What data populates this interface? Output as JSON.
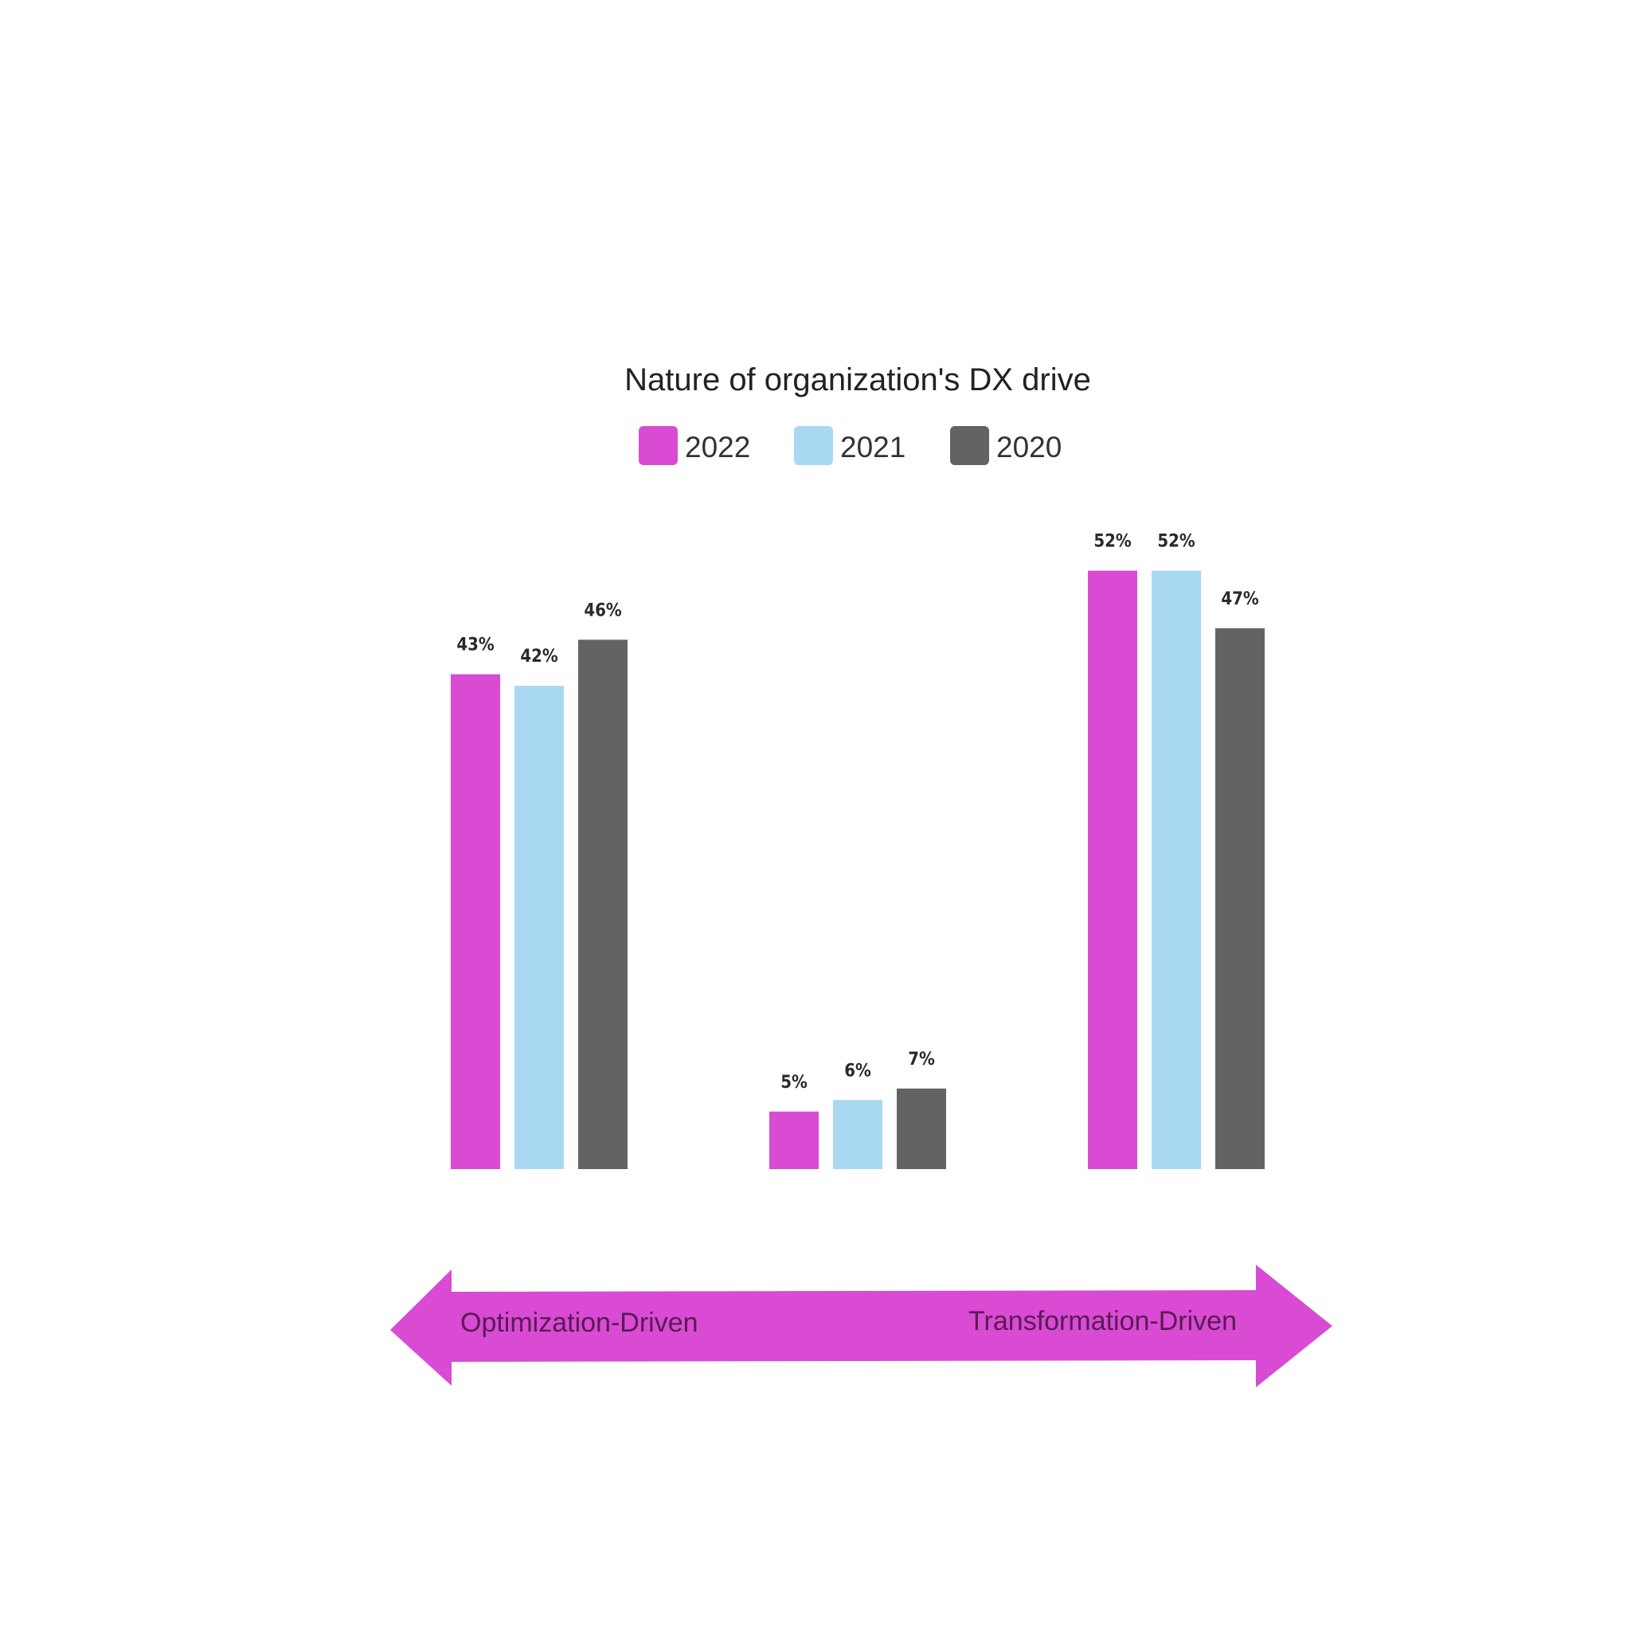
{
  "chart_data": {
    "type": "bar",
    "title": "Nature of organization's DX drive",
    "categories": [
      "",
      "",
      ""
    ],
    "series": [
      {
        "name": "2022",
        "color": "#d84bd2",
        "values": [
          43,
          5,
          52
        ],
        "labels": [
          "43%",
          "5%",
          "52%"
        ]
      },
      {
        "name": "2021",
        "color": "#a8d8f2",
        "values": [
          42,
          6,
          52
        ],
        "labels": [
          "42%",
          "6%",
          "52%"
        ]
      },
      {
        "name": "2020",
        "color": "#636363",
        "values": [
          46,
          7,
          47
        ],
        "labels": [
          "46%",
          "7%",
          "47%"
        ]
      }
    ],
    "ylim": [
      0,
      60
    ],
    "grid": false,
    "legend_position": "top-center",
    "xlabel": "",
    "ylabel": ""
  },
  "scale_arrow": {
    "left_label": "Optimization-Driven",
    "right_label": "Transformation-Driven",
    "color": "#d84bd2"
  }
}
